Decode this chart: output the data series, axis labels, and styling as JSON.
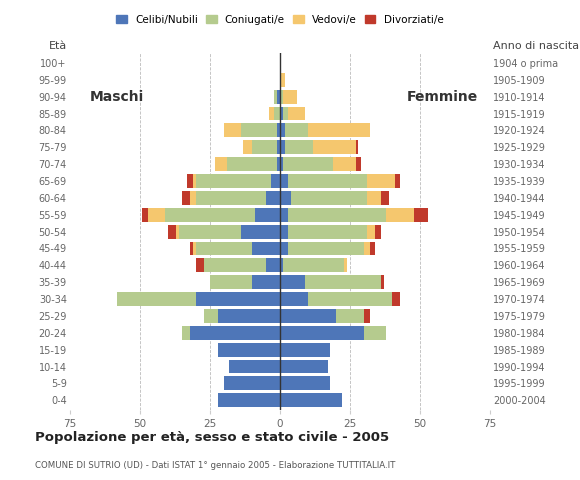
{
  "age_groups": [
    "0-4",
    "5-9",
    "10-14",
    "15-19",
    "20-24",
    "25-29",
    "30-34",
    "35-39",
    "40-44",
    "45-49",
    "50-54",
    "55-59",
    "60-64",
    "65-69",
    "70-74",
    "75-79",
    "80-84",
    "85-89",
    "90-94",
    "95-99",
    "100+"
  ],
  "birth_years": [
    "2000-2004",
    "1995-1999",
    "1990-1994",
    "1985-1989",
    "1980-1984",
    "1975-1979",
    "1970-1974",
    "1965-1969",
    "1960-1964",
    "1955-1959",
    "1950-1954",
    "1945-1949",
    "1940-1944",
    "1935-1939",
    "1930-1934",
    "1925-1929",
    "1920-1924",
    "1915-1919",
    "1910-1914",
    "1905-1909",
    "1904 o prima"
  ],
  "males": {
    "celibi": [
      22,
      20,
      18,
      22,
      32,
      22,
      30,
      10,
      5,
      10,
      14,
      9,
      5,
      3,
      1,
      1,
      1,
      0,
      1,
      0,
      0
    ],
    "coniugati": [
      0,
      0,
      0,
      0,
      3,
      5,
      28,
      15,
      22,
      20,
      22,
      32,
      25,
      27,
      18,
      9,
      13,
      2,
      1,
      0,
      0
    ],
    "vedovi": [
      0,
      0,
      0,
      0,
      0,
      0,
      0,
      0,
      0,
      1,
      1,
      6,
      2,
      1,
      4,
      3,
      6,
      2,
      0,
      0,
      0
    ],
    "divorziati": [
      0,
      0,
      0,
      0,
      0,
      0,
      0,
      0,
      3,
      1,
      3,
      2,
      3,
      2,
      0,
      0,
      0,
      0,
      0,
      0,
      0
    ]
  },
  "females": {
    "nubili": [
      22,
      18,
      17,
      18,
      30,
      20,
      10,
      9,
      1,
      3,
      3,
      3,
      4,
      3,
      1,
      2,
      2,
      1,
      0,
      0,
      0
    ],
    "coniugate": [
      0,
      0,
      0,
      0,
      8,
      10,
      30,
      27,
      22,
      27,
      28,
      35,
      27,
      28,
      18,
      10,
      8,
      2,
      1,
      0,
      0
    ],
    "vedove": [
      0,
      0,
      0,
      0,
      0,
      0,
      0,
      0,
      1,
      2,
      3,
      10,
      5,
      10,
      8,
      15,
      22,
      6,
      5,
      2,
      0
    ],
    "divorziate": [
      0,
      0,
      0,
      0,
      0,
      2,
      3,
      1,
      0,
      2,
      2,
      5,
      3,
      2,
      2,
      1,
      0,
      0,
      0,
      0,
      0
    ]
  },
  "colors": {
    "celibi": "#4e76b8",
    "coniugati": "#b5cb8e",
    "vedovi": "#f5c76e",
    "divorziati": "#c0392b"
  },
  "xlim": 75,
  "title": "Popolazione per età, sesso e stato civile - 2005",
  "subtitle": "COMUNE DI SUTRIO (UD) - Dati ISTAT 1° gennaio 2005 - Elaborazione TUTTITALIA.IT",
  "ylabel_left": "Età",
  "ylabel_right": "Anno di nascita",
  "label_maschi": "Maschi",
  "label_femmine": "Femmine",
  "legend_labels": [
    "Celibi/Nubili",
    "Coniugati/e",
    "Vedovi/e",
    "Divorziati/e"
  ],
  "bg_color": "#ffffff",
  "bar_height": 0.82
}
